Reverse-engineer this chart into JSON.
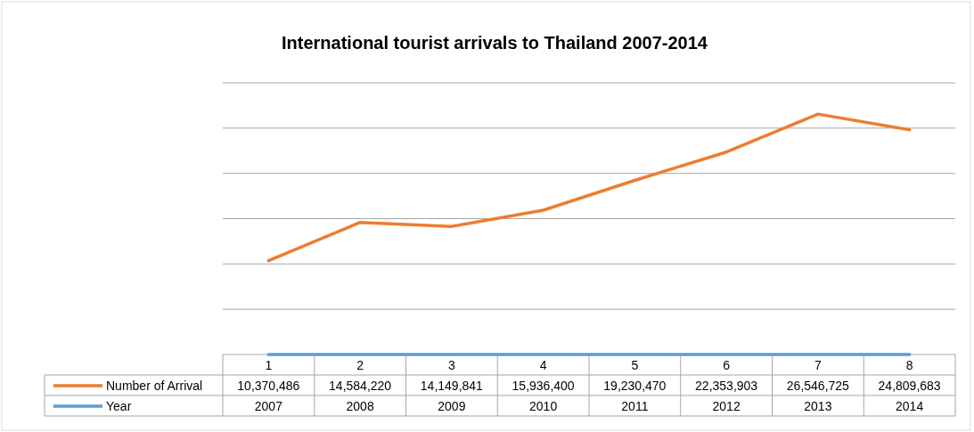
{
  "chart_data": {
    "type": "line",
    "title": "International tourist arrivals to Thailand 2007-2014",
    "categories": [
      "1",
      "2",
      "3",
      "4",
      "5",
      "6",
      "7",
      "8"
    ],
    "series": [
      {
        "name": "Number of Arrival",
        "color": "#ed7d31",
        "values": [
          10370486,
          14584220,
          14149841,
          15936400,
          19230470,
          22353903,
          26546725,
          24809683
        ],
        "value_labels": [
          "10,370,486",
          "14,584,220",
          "14,149,841",
          "15,936,400",
          "19,230,470",
          "22,353,903",
          "26,546,725",
          "24,809,683"
        ]
      },
      {
        "name": "Year",
        "color": "#5b9bd5",
        "values": [
          2007,
          2008,
          2009,
          2010,
          2011,
          2012,
          2013,
          2014
        ],
        "value_labels": [
          "2007",
          "2008",
          "2009",
          "2010",
          "2011",
          "2012",
          "2013",
          "2014"
        ]
      }
    ],
    "ylim": [
      0,
      30000000
    ],
    "yticks": [
      {
        "value": 0,
        "label": null
      },
      {
        "value": 5000000,
        "label": null
      },
      {
        "value": 10000000,
        "label": null
      },
      {
        "value": 15000000,
        "label": null
      },
      {
        "value": 20000000,
        "label": null
      },
      {
        "value": 25000000,
        "label": null
      },
      {
        "value": 30000000,
        "label": null
      }
    ],
    "grid": "y",
    "tick_labels": "x",
    "legend": "bottom",
    "line_style": "solid",
    "marker": "none"
  }
}
